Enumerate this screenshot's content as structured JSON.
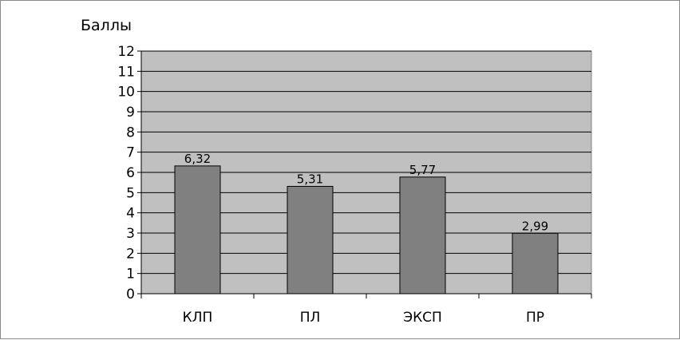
{
  "chart_data": {
    "type": "bar",
    "title": "",
    "ylabel": "Баллы",
    "xlabel": "",
    "categories": [
      "КЛП",
      "ПЛ",
      "ЭКСП",
      "ПР"
    ],
    "values": [
      6.32,
      5.31,
      5.77,
      2.99
    ],
    "value_labels": [
      "6,32",
      "5,31",
      "5,77",
      "2,99"
    ],
    "ylim": [
      0,
      12
    ],
    "yticks": [
      0,
      1,
      2,
      3,
      4,
      5,
      6,
      7,
      8,
      9,
      10,
      11,
      12
    ],
    "grid": true,
    "legend": "none",
    "colors": {
      "plot_background": "#c0c0c0",
      "bar_fill": "#808080",
      "bar_stroke": "#000000",
      "gridline": "#000000",
      "text": "#000000"
    }
  }
}
